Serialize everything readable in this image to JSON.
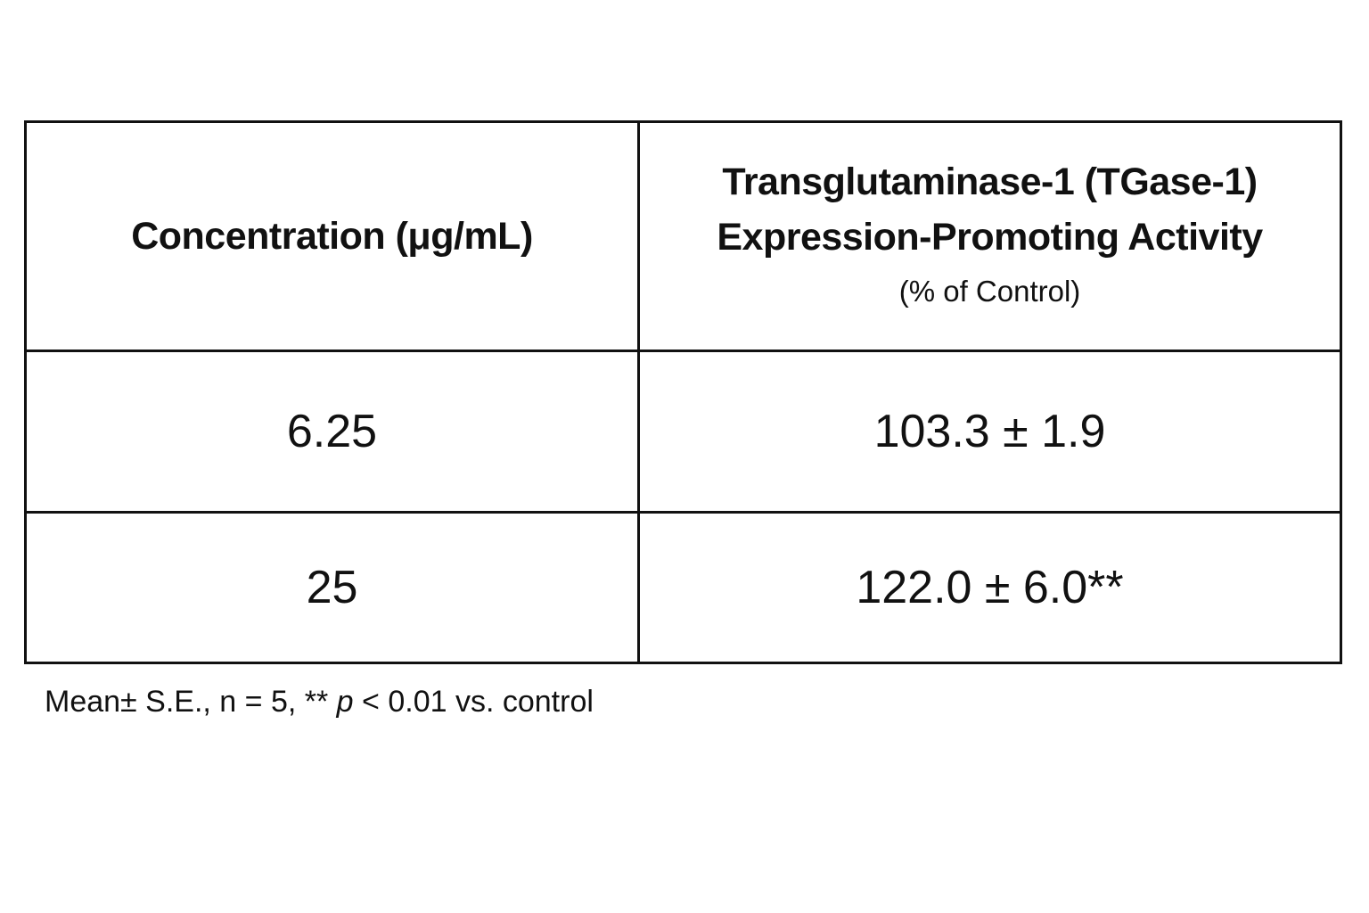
{
  "table": {
    "header": [
      "Concentration (μg/mL)",
      [
        "Transglutaminase-1 (TGase-1)",
        "Expression-Promoting Activity",
        "(% of Control)"
      ]
    ],
    "rows": [
      [
        "6.25",
        "103.3 ± 1.9"
      ],
      [
        "25",
        "122.0 ± 6.0**"
      ]
    ]
  },
  "footnote": [
    "Mean± S.E., n = 5, **",
    "p",
    "< 0.01 vs. control"
  ]
}
